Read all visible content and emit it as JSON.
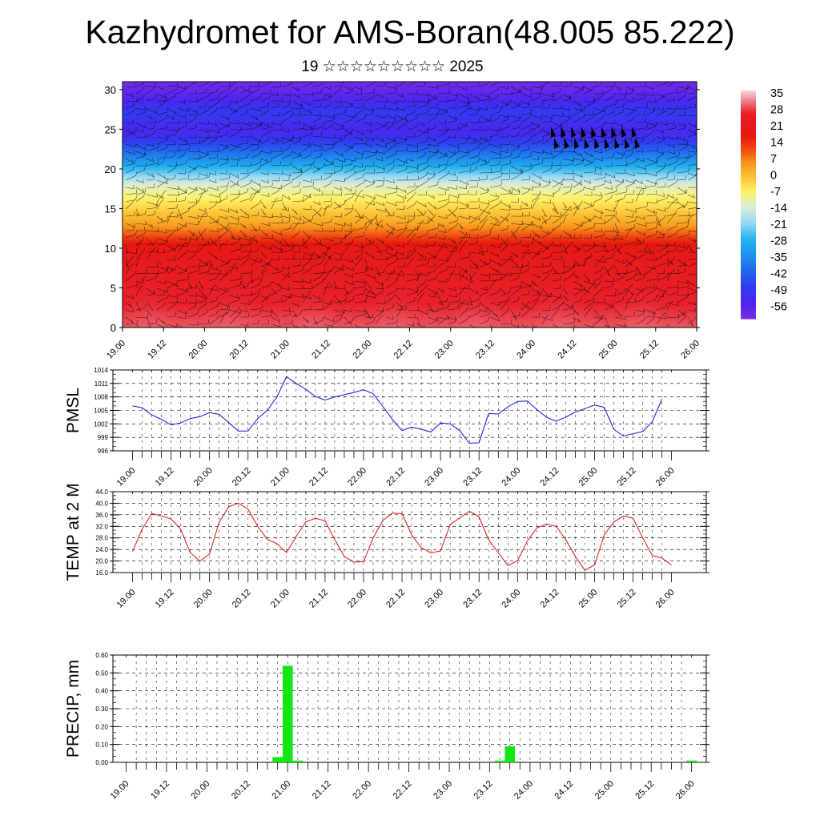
{
  "title": "Kazhydromet for AMS-Boran(48.005 85.222)",
  "subtitle": "19 ☆☆☆☆☆☆☆☆☆ 2025",
  "time_labels": [
    "19.00",
    "19.12",
    "20.00",
    "20.12",
    "21.00",
    "21.12",
    "22.00",
    "22.12",
    "23.00",
    "23.12",
    "24.00",
    "24.12",
    "25.00",
    "25.12",
    "26.00"
  ],
  "chart_data": [
    {
      "type": "heatmap",
      "title": "",
      "xlabel": "",
      "ylabel": "",
      "ylim": [
        0,
        31
      ],
      "y_ticks": [
        0,
        5,
        10,
        15,
        20,
        25,
        30
      ],
      "colorbar": {
        "labels": [
          "35",
          "28",
          "21",
          "14",
          "7",
          "0",
          "-7",
          "-14",
          "-21",
          "-28",
          "-35",
          "-42",
          "-49",
          "-56"
        ],
        "range": [
          -63,
          38
        ],
        "stops": [
          {
            "v": 38,
            "c": "#f8d7dc"
          },
          {
            "v": 33,
            "c": "#ec7b86"
          },
          {
            "v": 28,
            "c": "#e8202a"
          },
          {
            "v": 18,
            "c": "#e6160f"
          },
          {
            "v": 12,
            "c": "#f04a12"
          },
          {
            "v": 6,
            "c": "#f7941d"
          },
          {
            "v": 0,
            "c": "#fbbf33"
          },
          {
            "v": -7,
            "c": "#fff36a"
          },
          {
            "v": -14,
            "c": "#d7ecdd"
          },
          {
            "v": -21,
            "c": "#8fd6f4"
          },
          {
            "v": -28,
            "c": "#22b3ec"
          },
          {
            "v": -35,
            "c": "#1e8ff0"
          },
          {
            "v": -42,
            "c": "#2466ee"
          },
          {
            "v": -49,
            "c": "#2e3cef"
          },
          {
            "v": -56,
            "c": "#4b25ee"
          },
          {
            "v": -63,
            "c": "#7a2ee6"
          }
        ]
      },
      "profile_levels": [
        {
          "y": 0,
          "value": 31
        },
        {
          "y": 5,
          "value": 26
        },
        {
          "y": 10,
          "value": 21
        },
        {
          "y": 13,
          "value": 4
        },
        {
          "y": 16,
          "value": -6
        },
        {
          "y": 18,
          "value": -13
        },
        {
          "y": 20,
          "value": -27
        },
        {
          "y": 22,
          "value": -40
        },
        {
          "y": 24,
          "value": -53
        },
        {
          "y": 25,
          "value": -55
        },
        {
          "y": 27,
          "value": -50
        },
        {
          "y": 29,
          "value": -57
        },
        {
          "y": 31,
          "value": -62
        }
      ],
      "warm_cores_x": [
        0.25,
        1.25,
        2.25,
        3.25,
        4.25,
        5.25,
        6.25
      ]
    },
    {
      "type": "line",
      "ylabel": "PMSL",
      "ylim": [
        996,
        1014
      ],
      "y_ticks": [
        996,
        999,
        1002,
        1005,
        1008,
        1011,
        1014
      ],
      "color": "#1010e0",
      "x_step_hours": 3,
      "values": [
        1006,
        1005.6,
        1004,
        1003,
        1001.8,
        1002.2,
        1003.2,
        1003.6,
        1004.5,
        1004.1,
        1002.3,
        1000.4,
        1000.4,
        1003.2,
        1005,
        1008,
        1012.5,
        1011,
        1009.7,
        1008.1,
        1007.3,
        1008,
        1008.5,
        1009,
        1009.6,
        1008.7,
        1005.9,
        1003,
        1000.5,
        1001.3,
        1000.8,
        1000.2,
        1002.2,
        1002,
        1000.5,
        997.7,
        997.8,
        1004.3,
        1004.2,
        1005.8,
        1007,
        1007.1,
        1005.2,
        1003.5,
        1002.6,
        1003.5,
        1004.6,
        1005.4,
        1006.2,
        1005.7,
        1000.8,
        999.3,
        999.8,
        1000.3,
        1002.5,
        1007.5
      ]
    },
    {
      "type": "line",
      "ylabel": "TEMP at 2 M",
      "ylim": [
        16,
        44
      ],
      "y_ticks": [
        "16.0",
        "20.0",
        "24.0",
        "28.0",
        "32.0",
        "36.0",
        "40.0",
        "44.0"
      ],
      "color": "#e01010",
      "x_step_hours": 3,
      "values": [
        23.4,
        31,
        36.4,
        35.6,
        34.6,
        31,
        22.9,
        20,
        22.4,
        33.5,
        38.8,
        40,
        38,
        32,
        27.5,
        26,
        22.9,
        28.5,
        33.5,
        34.8,
        33.9,
        27.5,
        21.6,
        19.6,
        19.8,
        28,
        34,
        36.6,
        36.4,
        29,
        24.6,
        22.8,
        23.5,
        32.6,
        35,
        37.2,
        35.3,
        27.3,
        22.8,
        18.4,
        20.1,
        26.8,
        31.5,
        32.8,
        32,
        27.5,
        21.6,
        16.8,
        18.6,
        29,
        33.5,
        35.6,
        34.8,
        28,
        21.9,
        21,
        18.6
      ]
    },
    {
      "type": "bar",
      "ylabel": "PRECIP, mm",
      "ylim": [
        0,
        0.6
      ],
      "y_ticks": [
        "0.00",
        "0.10",
        "0.20",
        "0.30",
        "0.40",
        "0.50",
        "0.60"
      ],
      "color": "#14e614",
      "x_step_hours": 3,
      "bars": [
        {
          "t_hours": 45,
          "value": 0.03
        },
        {
          "t_hours": 48,
          "value": 0.54
        },
        {
          "t_hours": 51,
          "value": 0.01
        },
        {
          "t_hours": 111,
          "value": 0.01
        },
        {
          "t_hours": 114,
          "value": 0.09
        },
        {
          "t_hours": 168,
          "value": 0.01
        }
      ]
    }
  ]
}
